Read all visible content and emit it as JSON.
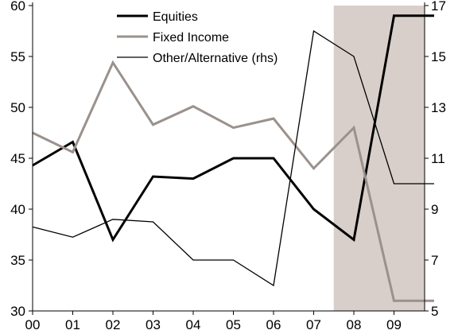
{
  "chart_data": {
    "type": "line",
    "title": "",
    "xlabel": "",
    "ylabel": "",
    "categories": [
      "00",
      "01",
      "02",
      "03",
      "04",
      "05",
      "06",
      "07",
      "08",
      "09",
      ""
    ],
    "ylim": [
      30,
      60
    ],
    "y_ticks": [
      "30",
      "35",
      "40",
      "45",
      "50",
      "55",
      "60"
    ],
    "y2lim": [
      5,
      17
    ],
    "y2_ticks": [
      "5",
      "7",
      "9",
      "11",
      "13",
      "15",
      "17"
    ],
    "grid": false,
    "legend_position": "top-center",
    "shaded_region": {
      "from": 7.5,
      "to": 9.85,
      "color": "#d8cfca"
    },
    "series": [
      {
        "name": "Equities",
        "axis": "left",
        "color": "#000000",
        "width": 3,
        "values": [
          44.3,
          46.6,
          37,
          43.2,
          43,
          45,
          45,
          40,
          37,
          59,
          59
        ]
      },
      {
        "name": "Fixed Income",
        "axis": "left",
        "color": "#9b918c",
        "width": 3,
        "values": [
          47.5,
          45.6,
          54.4,
          48.3,
          50.1,
          48,
          48.9,
          44,
          48,
          31,
          31
        ]
      },
      {
        "name": "Other/Alternative (rhs)",
        "axis": "right",
        "color": "#000000",
        "width": 1.3,
        "values": [
          8.3,
          7.9,
          8.6,
          8.5,
          7,
          7,
          6,
          16,
          15,
          10,
          10
        ]
      }
    ]
  }
}
